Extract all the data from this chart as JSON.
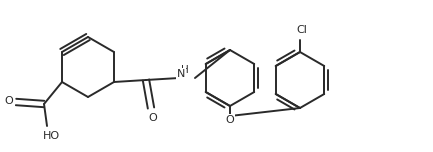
{
  "bg_color": "#ffffff",
  "line_color": "#2a2a2a",
  "line_width": 1.4,
  "figsize": [
    4.33,
    1.52
  ],
  "dpi": 100,
  "xlim": [
    0,
    433
  ],
  "ylim": [
    0,
    152
  ]
}
